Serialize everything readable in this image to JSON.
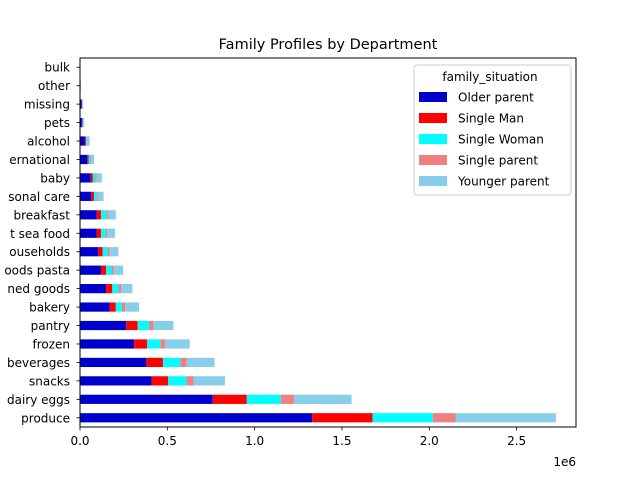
{
  "chart_data": {
    "type": "bar",
    "orientation": "horizontal",
    "stacked": true,
    "title": "Family Profiles by Department",
    "categories": [
      "produce",
      "dairy eggs",
      "snacks",
      "beverages",
      "frozen",
      "pantry",
      "bakery",
      "canned goods",
      "dry goods pasta",
      "household",
      "meat sea food",
      "breakfast",
      "personal care",
      "babies",
      "international",
      "alcohol",
      "pets",
      "missing",
      "other",
      "bulk"
    ],
    "category_labels": [
      "produce",
      "dairy eggs",
      "snacks",
      "beverages",
      "frozen",
      "pantry",
      "bakery",
      "ned goods",
      "oods pasta",
      "ouseholds",
      "t sea food",
      "breakfast",
      "sonal care",
      "baby",
      "ernational",
      "alcohol",
      "pets",
      "missing",
      "other",
      "bulk"
    ],
    "series": [
      {
        "name": "Older parent",
        "color": "#0000cd",
        "values": [
          1330000,
          760000,
          410000,
          380000,
          310000,
          265000,
          170000,
          150000,
          120000,
          105000,
          95000,
          95000,
          65000,
          62000,
          42000,
          28000,
          11000,
          9000,
          3000,
          1500
        ]
      },
      {
        "name": "Single Man",
        "color": "#ff0000",
        "values": [
          345000,
          195000,
          95000,
          95000,
          75000,
          65000,
          35000,
          35000,
          30000,
          25000,
          25000,
          25000,
          15000,
          12000,
          8000,
          6000,
          3000,
          2000,
          500,
          300
        ]
      },
      {
        "name": "Single Woman",
        "color": "#00ffff",
        "values": [
          345000,
          195000,
          105000,
          100000,
          75000,
          65000,
          35000,
          35000,
          30000,
          28000,
          25000,
          30000,
          15000,
          15000,
          10000,
          5000,
          3000,
          2000,
          500,
          300
        ]
      },
      {
        "name": "Single parent",
        "color": "#f08080",
        "values": [
          130000,
          75000,
          40000,
          35000,
          28000,
          25000,
          18000,
          15000,
          12000,
          12000,
          10000,
          10000,
          7000,
          6000,
          4000,
          3000,
          1000,
          1000,
          200,
          100
        ]
      },
      {
        "name": "Younger parent",
        "color": "#87ceeb",
        "values": [
          575000,
          330000,
          180000,
          160000,
          140000,
          115000,
          80000,
          65000,
          55000,
          50000,
          45000,
          45000,
          33000,
          30000,
          16000,
          13000,
          6000,
          4000,
          1500,
          700
        ]
      }
    ],
    "xlim": [
      0,
      2840000
    ],
    "x_ticks": [
      0,
      500000,
      1000000,
      1500000,
      2000000,
      2500000
    ],
    "x_tick_labels": [
      "0.0",
      "0.5",
      "1.0",
      "1.5",
      "2.0",
      "2.5"
    ],
    "x_offset_label": "1e6",
    "legend": {
      "title": "family_situation",
      "placement": "upper right"
    },
    "grid": false
  }
}
